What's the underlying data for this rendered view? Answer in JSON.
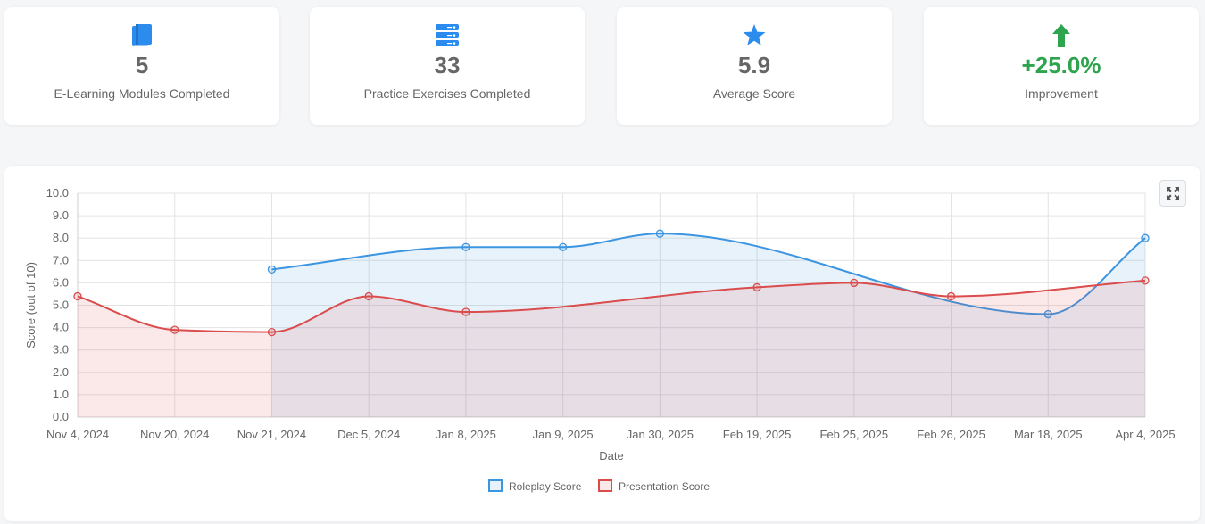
{
  "stats": [
    {
      "icon": "book-icon",
      "value": "5",
      "label": "E-Learning Modules Completed"
    },
    {
      "icon": "server-stack-icon",
      "value": "33",
      "label": "Practice Exercises Completed"
    },
    {
      "icon": "star-icon",
      "value": "5.9",
      "label": "Average Score"
    },
    {
      "icon": "arrow-up-icon",
      "value": "+25.0%",
      "label": "Improvement"
    }
  ],
  "colors": {
    "icon_blue": "#2b8ced",
    "improvement_green": "#2ea44f",
    "roleplay": "#3b95e0",
    "presentation": "#db4c4c"
  },
  "chart_data": {
    "type": "line",
    "xlabel": "Date",
    "ylabel": "Score (out of 10)",
    "ylim": [
      0,
      10
    ],
    "yticks": [
      "0.0",
      "1.0",
      "2.0",
      "3.0",
      "4.0",
      "5.0",
      "6.0",
      "7.0",
      "8.0",
      "9.0",
      "10.0"
    ],
    "categories": [
      "Nov 4, 2024",
      "Nov 20, 2024",
      "Nov 21, 2024",
      "Dec 5, 2024",
      "Jan 8, 2025",
      "Jan 9, 2025",
      "Jan 30, 2025",
      "Feb 19, 2025",
      "Feb 25, 2025",
      "Feb 26, 2025",
      "Mar 18, 2025",
      "Apr 4, 2025"
    ],
    "grid": true,
    "legend": "bottom",
    "filled": true,
    "series": [
      {
        "name": "Roleplay Score",
        "color": "#3b95e0",
        "values": [
          null,
          null,
          6.6,
          null,
          7.6,
          7.6,
          8.2,
          null,
          null,
          null,
          4.6,
          8.0
        ]
      },
      {
        "name": "Presentation Score",
        "color": "#db4c4c",
        "values": [
          5.4,
          3.9,
          3.8,
          5.4,
          4.7,
          null,
          null,
          5.8,
          6.0,
          5.4,
          null,
          6.1
        ]
      }
    ]
  },
  "expand_button": {
    "icon": "expand-icon"
  }
}
